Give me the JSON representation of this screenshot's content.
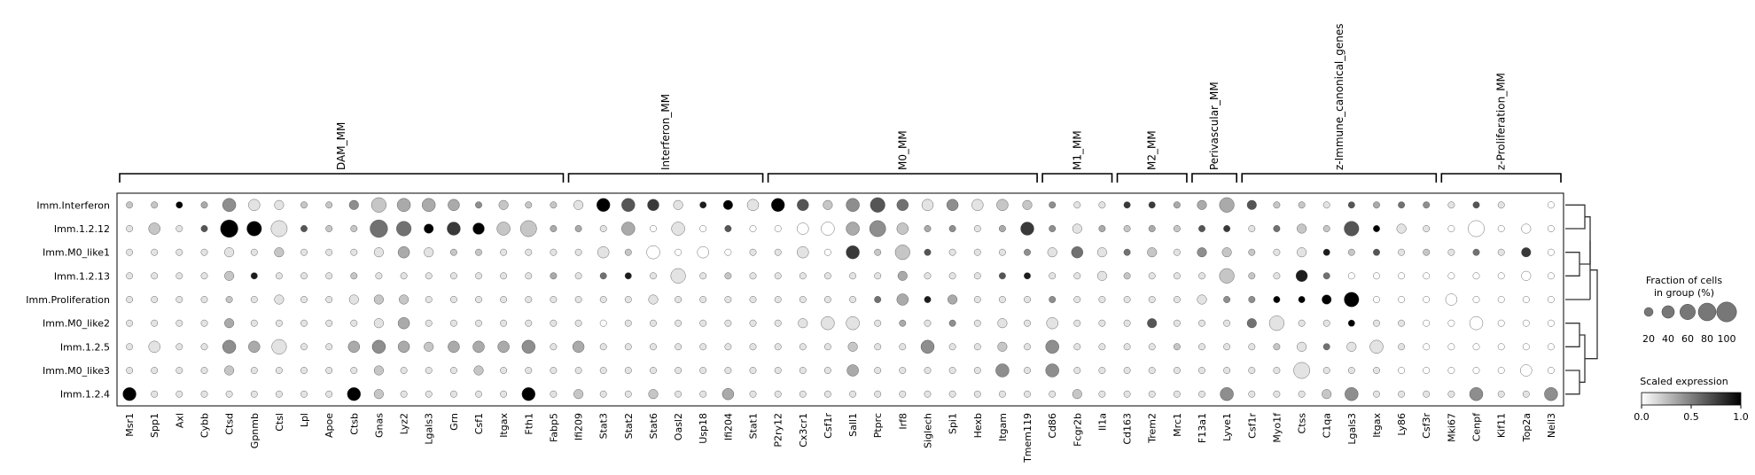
{
  "chart_data": {
    "type": "dotplot",
    "rows": [
      "Imm.Interferon",
      "Imm.1.2.12",
      "Imm.M0_like1",
      "Imm.1.2.13",
      "Imm.Proliferation",
      "Imm.M0_like2",
      "Imm.1.2.5",
      "Imm.M0_like3",
      "Imm.1.2.4"
    ],
    "columns": [
      "Msr1",
      "Spp1",
      "Axl",
      "Cybb",
      "Ctsd",
      "Gpnmb",
      "Ctsl",
      "Lpl",
      "Apoe",
      "Ctsb",
      "Gnas",
      "Lyz2",
      "Lgals3",
      "Grn",
      "Csf1",
      "Itgax",
      "Fth1",
      "Fabp5",
      "Ifi209",
      "Stat3",
      "Stat2",
      "Stat6",
      "Oasl2",
      "Usp18",
      "Ifi204",
      "Stat1",
      "P2ry12",
      "Cx3cr1",
      "Csf1r",
      "Sall1",
      "Ptprc",
      "Irf8",
      "Siglech",
      "Spi1",
      "Hexb",
      "Itgam",
      "Tmem119",
      "Cd86",
      "Fcgr2b",
      "Il1a",
      "Cd163",
      "Trem2",
      "Mrc1",
      "F13a1",
      "Lyve1",
      "Csf1r",
      "Myo1f",
      "Ctss",
      "C1qa",
      "Lgals3",
      "Itgax",
      "Ly86",
      "Csf3r",
      "Mki67",
      "Cenpf",
      "Kif11",
      "Top2a",
      "Neil3"
    ],
    "groups": [
      {
        "name": "DAM_MM",
        "start": 0,
        "end": 17
      },
      {
        "name": "Interferon_MM",
        "start": 18,
        "end": 25
      },
      {
        "name": "M0_MM",
        "start": 26,
        "end": 36
      },
      {
        "name": "M1_MM",
        "start": 37,
        "end": 39
      },
      {
        "name": "M2_MM",
        "start": 40,
        "end": 42
      },
      {
        "name": "Perivascular_MM",
        "start": 43,
        "end": 44
      },
      {
        "name": "z-Immune_canonical_genes",
        "start": 45,
        "end": 52
      },
      {
        "name": "z-Proliferation_MM",
        "start": 53,
        "end": 57
      }
    ],
    "dot_size_codes": "0 = no dot; 1..9 = fraction of cells in group, 10%..100%",
    "dot_color_codes": "0..9 = scaled expression 0.0..1.0 (white to black)",
    "size": [
      "1111432112544312112|4432123432453333321|1111125211111|111110111|1111110000|",
      "1311756111752434611|1414111134463111141|2111111112151211|61211|5641134131",
      "1111212111232111111|3141311131415111112|3212122112111111|1121|21112311414",
      "1111211111111111111|1115111111112111111|121111511311111|11121111|11411311",
      "1111112112221111111|1121111111113121111|111112111125111|3111|1111445545",
      "1111211111231111111|1111111124411111213|1112111251111111|4|111112115111",
      "1311435113432333413|1111111111211411214|1111111112124111|1111|111113211",
      "1111211111211121111|1111111111311111414|1111111116111111|113111|3111",
      "4111111114211111412|1121131111111111111|2111114111241111|4114111|111"
    ],
    "color": [
      "2293411224233342221|9671891962465141|2241|17733|3622163541611",
      "1216991622559792233|1301060000342341|37413|232|6715226911",
      "1111112111131221111|1200001110722611141|51521|4|2211|82612151|7",
      "1111281112111111131|5811121111113111|6811|1211|1221|85",
      "1111211111221111111|111111111115|3831|1141|1111144|9999",
      "1111311111131111111|0111111111113141|1111|1161115111|911",
      "1111431113432333413|1111111111211411214|1111|2111215111",
      "1111211111211121111|1111111111311111414|1111|111111111",
      "9111111119211111912|1121131111111111111|2111114111241111|4114"
    ],
    "rows_dendrogram": "yes",
    "size_legend": {
      "title": "Fraction of cells\nin group (%)",
      "ticks": [
        "20",
        "40",
        "60",
        "80",
        "100"
      ]
    },
    "color_legend": {
      "title": "Scaled expression",
      "ticks": [
        "0.0",
        "0.5",
        "1.0"
      ]
    }
  }
}
